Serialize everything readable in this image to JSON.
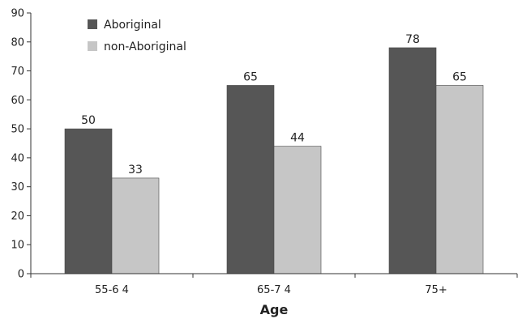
{
  "chart_data": {
    "type": "bar",
    "title": "",
    "xlabel": "Age",
    "ylabel": "",
    "categories": [
      "55-6 4",
      "65-7 4",
      "75+"
    ],
    "series": [
      {
        "name": "Aboriginal",
        "values": [
          50,
          65,
          78
        ],
        "color": "#565656"
      },
      {
        "name": "non-Aboriginal",
        "values": [
          33,
          44,
          65
        ],
        "color": "#c6c6c6"
      }
    ],
    "ylim": [
      0,
      90
    ],
    "yticks": [
      0,
      10,
      20,
      30,
      40,
      50,
      60,
      70,
      80,
      90
    ],
    "data_labels": true,
    "grid": false,
    "legend_position": "top-left"
  }
}
